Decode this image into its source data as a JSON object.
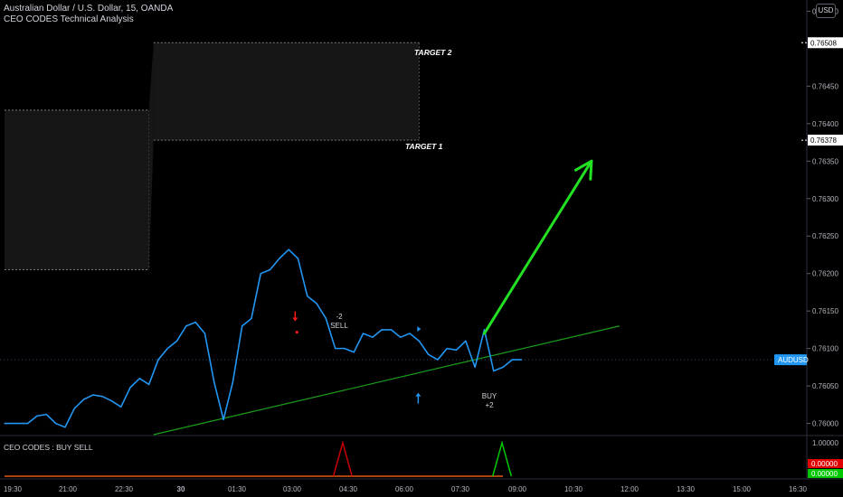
{
  "header": {
    "title": "Australian Dollar / U.S. Dollar, 15, OANDA",
    "indicator": "CEO CODES Technical Analysis"
  },
  "currency_button": "USD",
  "symbol_badge": "AUDUSD",
  "oscillator": {
    "label": "CEO CODES : BUY SELL",
    "scale_ticks": [
      "1.00000",
      "0.00000"
    ],
    "badge_sell": "0.00000",
    "badge_buy": "0.00000",
    "buy_spikes_at": [
      53.4
    ],
    "sell_spikes_at": [
      36.3
    ]
  },
  "targets": {
    "target1_label": "TARGET 1",
    "target1_price": "0.76378",
    "target2_label": "TARGET 2",
    "target2_price": "0.76508"
  },
  "signals": {
    "sell_top": "-2",
    "sell_bottom": "SELL",
    "buy_top": "BUY",
    "buy_bottom": "+2"
  },
  "colors": {
    "background": "#000000",
    "price_line": "#2196f3",
    "trend_line": "#1b9e1b",
    "arrow": "#22e022",
    "sell": "#ff1a1a",
    "buy": "#2196f3",
    "osc_buy": "#00c800",
    "osc_sell": "#c80000",
    "osc_base": "#e05a10"
  },
  "chart_data": {
    "type": "line",
    "symbol": "AUDUSD",
    "timeframe": "15",
    "x_tick_labels": [
      "19:30",
      "21:00",
      "22:30",
      "30",
      "01:30",
      "03:00",
      "04:30",
      "06:00",
      "07:30",
      "09:00",
      "10:30",
      "12:00",
      "13:30",
      "15:00",
      "16:30"
    ],
    "y_tick_labels": [
      "0.76550",
      "0.76450",
      "0.76400",
      "0.76350",
      "0.76300",
      "0.76250",
      "0.76200",
      "0.76150",
      "0.76100",
      "0.76050",
      "0.76000"
    ],
    "y_tick_values": [
      0.7655,
      0.7645,
      0.764,
      0.7635,
      0.763,
      0.7625,
      0.762,
      0.7615,
      0.761,
      0.7605,
      0.76
    ],
    "ylim": [
      0.75985,
      0.76565
    ],
    "x_index_range": [
      0,
      70
    ],
    "series": [
      {
        "x": [
          0,
          2.5,
          3.5,
          4.5,
          5.5,
          6.5,
          7.5,
          8.5,
          9.5,
          10.5,
          11.5,
          12.5,
          13.5,
          14.5,
          15.5,
          16.5,
          17.5,
          18.5,
          19.5,
          20.5,
          21.5,
          22.5,
          23.5,
          24.5,
          25.5,
          26.5,
          27.5,
          28.5,
          29.5,
          30.5,
          31.5,
          32.5,
          33.5,
          34.5,
          35.5,
          36.5,
          37.5,
          38.5,
          39.5,
          40.5,
          41.5,
          42.5,
          43.5,
          44.5,
          45.5,
          46.5,
          47.5,
          48.5,
          49.5,
          50.5,
          51.5,
          52.5,
          53.5,
          54.5,
          55.5
        ],
        "values": [
          0.76,
          0.76,
          0.7601,
          0.76012,
          0.76,
          0.75995,
          0.7602,
          0.76032,
          0.76038,
          0.76036,
          0.7603,
          0.76022,
          0.76048,
          0.7606,
          0.76052,
          0.76085,
          0.761,
          0.7611,
          0.7613,
          0.76135,
          0.7612,
          0.76055,
          0.76005,
          0.76055,
          0.7613,
          0.7614,
          0.762,
          0.76205,
          0.7622,
          0.76232,
          0.7622,
          0.7617,
          0.7616,
          0.7614,
          0.761,
          0.761,
          0.76095,
          0.7612,
          0.76115,
          0.76125,
          0.76125,
          0.76115,
          0.7612,
          0.7611,
          0.76092,
          0.76085,
          0.761,
          0.76098,
          0.7611,
          0.76075,
          0.76125,
          0.7607,
          0.76075,
          0.76085,
          0.76085
        ]
      }
    ],
    "target_zones": [
      {
        "x_from": 0,
        "x_to": 15.5,
        "y_low": 0.76205,
        "y_high": 0.76418
      },
      {
        "x_from": 16,
        "x_to": 44.5,
        "y_low": 0.76378,
        "y_high": 0.76508
      }
    ],
    "trend_line": {
      "x": [
        16,
        66
      ],
      "y": [
        0.75985,
        0.7613
      ]
    },
    "forecast_arrow": {
      "x": [
        51.5,
        63
      ],
      "y": [
        0.7612,
        0.7635
      ]
    },
    "sell_signal": {
      "x": 31,
      "y": 0.76123
    },
    "buy_signal": {
      "x": 44.5,
      "y": 0.76053
    }
  }
}
